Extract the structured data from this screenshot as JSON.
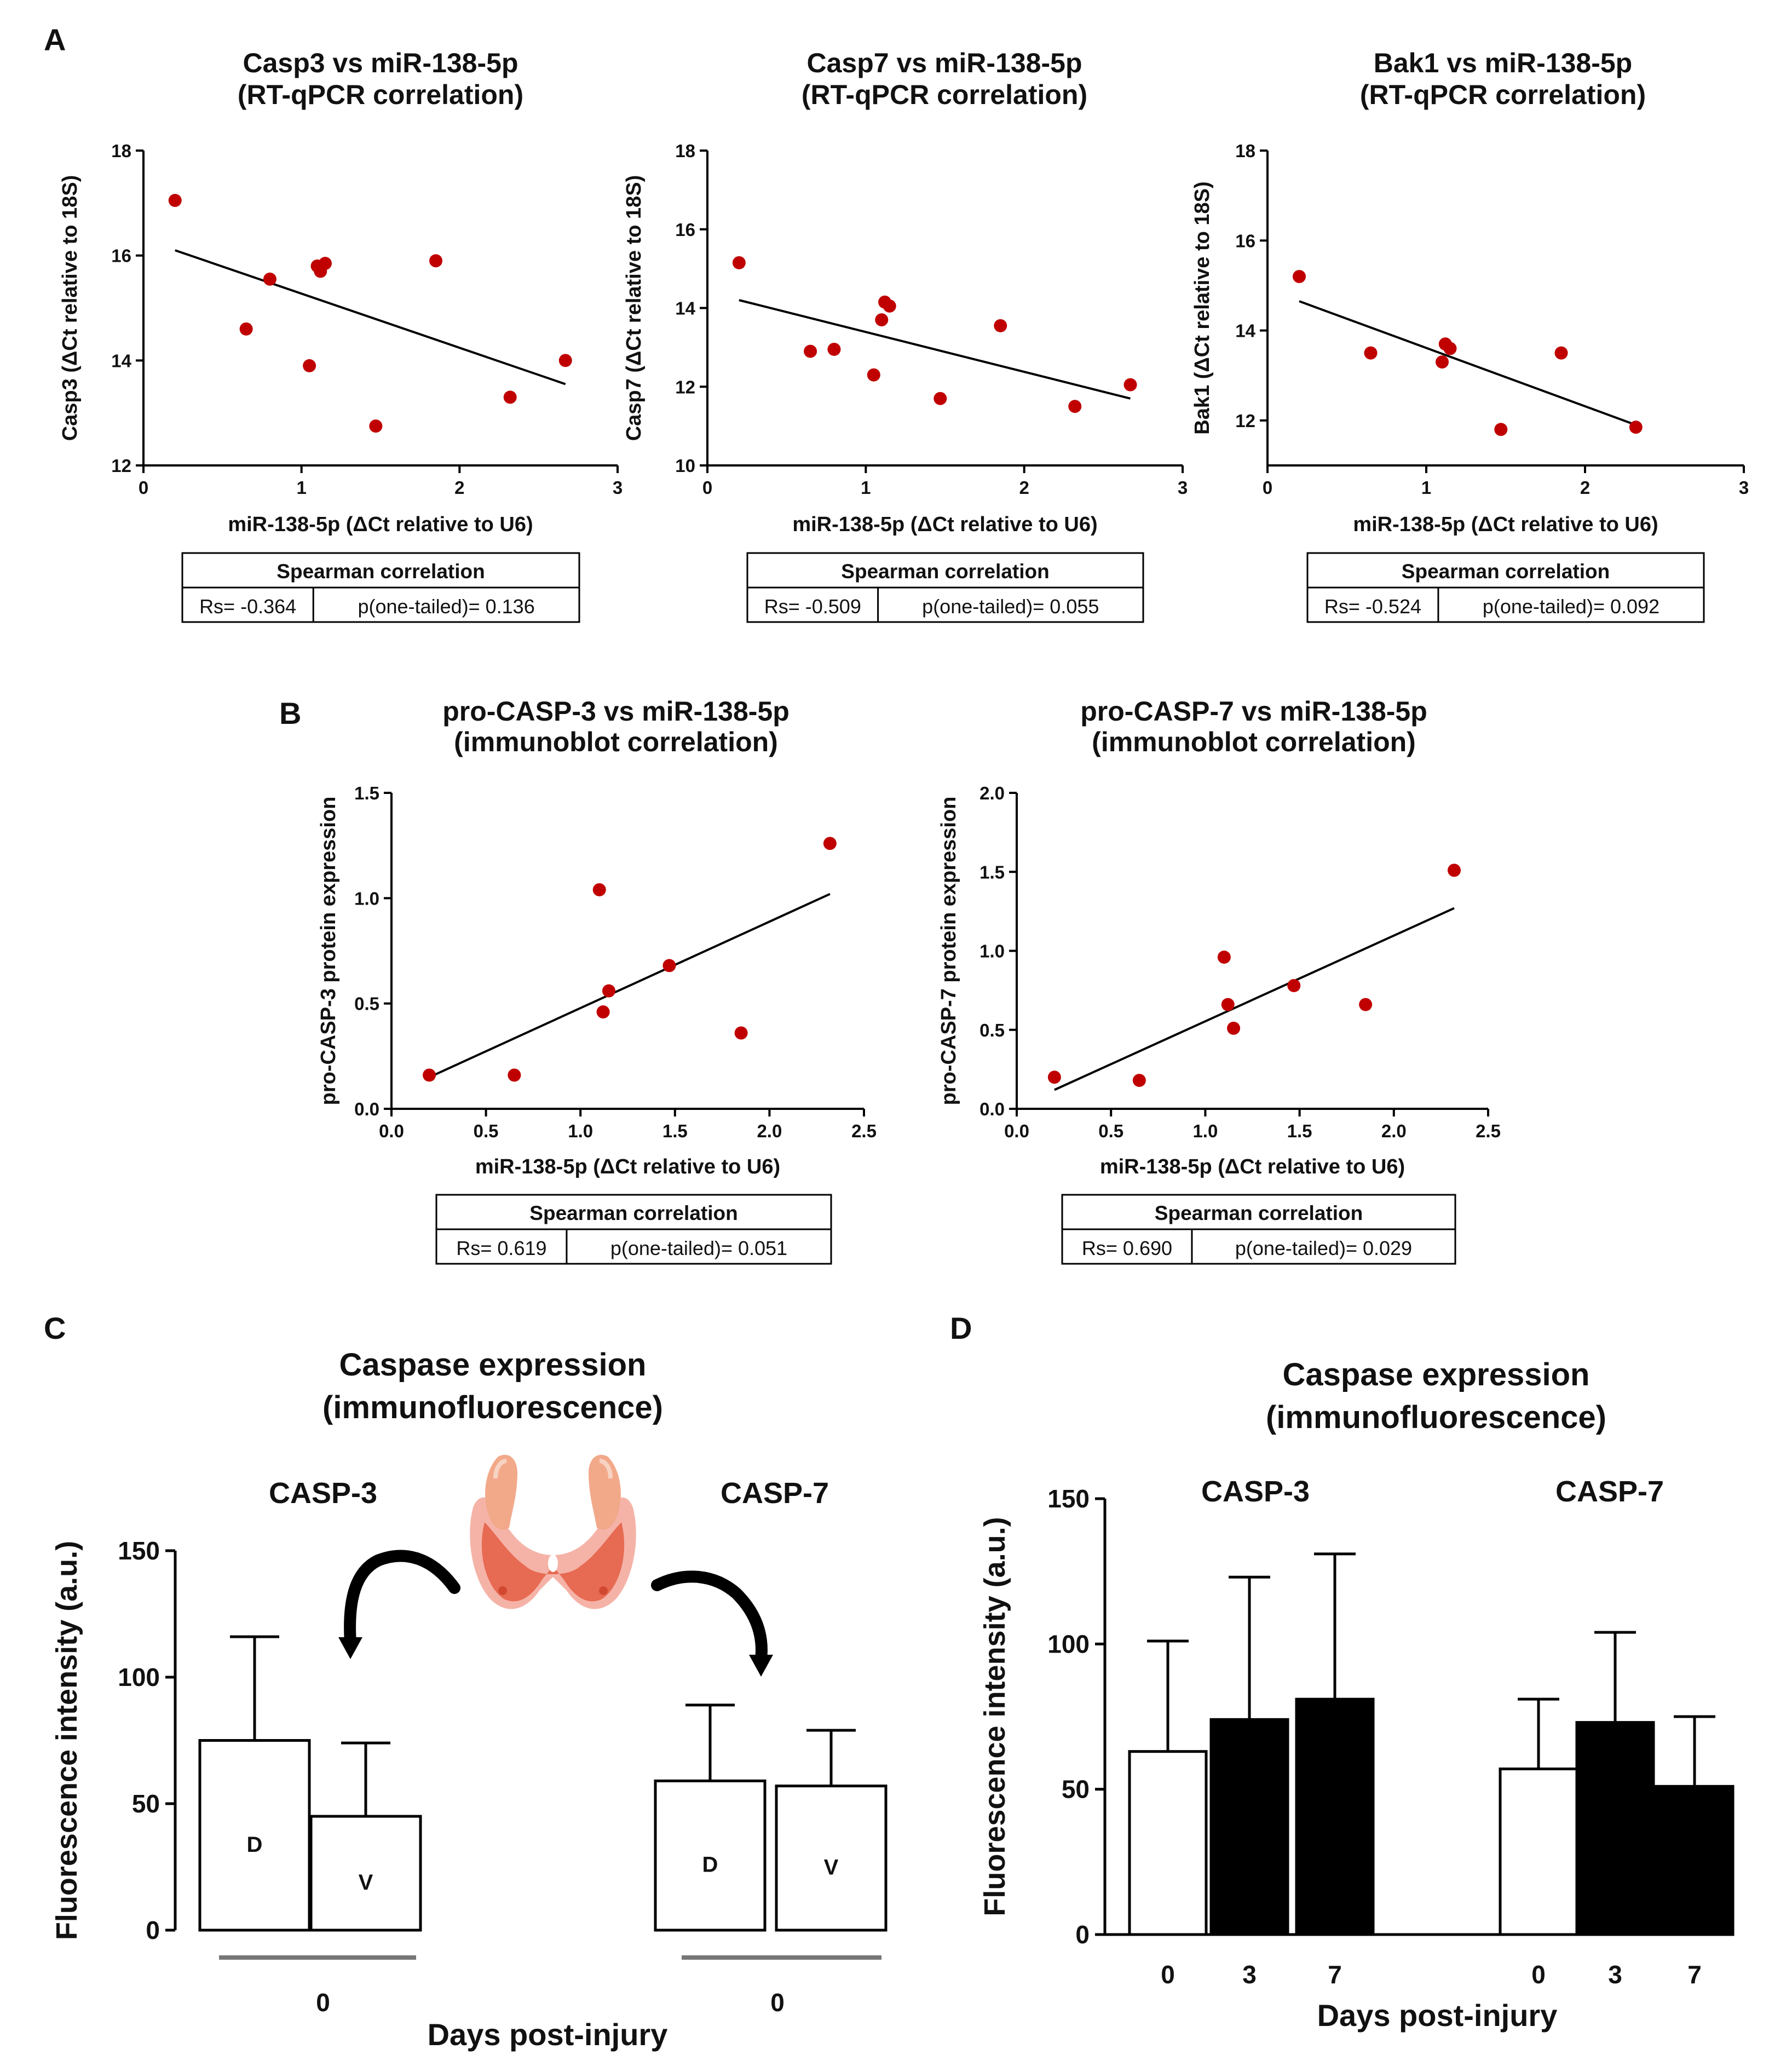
{
  "panel_letters": {
    "A": "A",
    "B": "B",
    "C": "C",
    "D": "D"
  },
  "chart_data": [
    {
      "id": "A1",
      "type": "scatter",
      "title_line1": "Casp3 vs miR-138-5p",
      "title_line2": "(RT-qPCR correlation)",
      "xlabel": "miR-138-5p (ΔCt relative to U6)",
      "ylabel": "Casp3 (ΔCt relative to 18S)",
      "xlim": [
        0,
        3
      ],
      "ylim": [
        12,
        18
      ],
      "xticks": [
        0,
        1,
        2,
        3
      ],
      "xtick_labels": [
        "0",
        "1",
        "2",
        "3"
      ],
      "yticks": [
        12,
        14,
        16,
        18
      ],
      "ytick_labels": [
        "12",
        "14",
        "16",
        "18"
      ],
      "points": [
        [
          0.2,
          17.05
        ],
        [
          0.65,
          14.6
        ],
        [
          0.8,
          15.55
        ],
        [
          1.05,
          13.9
        ],
        [
          1.1,
          15.8
        ],
        [
          1.12,
          15.7
        ],
        [
          1.15,
          15.85
        ],
        [
          1.47,
          12.75
        ],
        [
          1.85,
          15.9
        ],
        [
          2.32,
          13.3
        ],
        [
          2.67,
          14.0
        ]
      ],
      "fit": [
        [
          0.2,
          16.1
        ],
        [
          2.67,
          13.55
        ]
      ],
      "stats": {
        "header": "Spearman correlation",
        "rs": "Rs= -0.364",
        "p": "p(one-tailed)= 0.136"
      },
      "point_color": "#c00000"
    },
    {
      "id": "A2",
      "type": "scatter",
      "title_line1": "Casp7 vs miR-138-5p",
      "title_line2": "(RT-qPCR correlation)",
      "xlabel": "miR-138-5p (ΔCt relative to U6)",
      "ylabel": "Casp7 (ΔCt relative to 18S)",
      "xlim": [
        0,
        3
      ],
      "ylim": [
        10,
        18
      ],
      "xticks": [
        0,
        1,
        2,
        3
      ],
      "xtick_labels": [
        "0",
        "1",
        "2",
        "3"
      ],
      "yticks": [
        10,
        12,
        14,
        16,
        18
      ],
      "ytick_labels": [
        "10",
        "12",
        "14",
        "16",
        "18"
      ],
      "points": [
        [
          0.2,
          15.15
        ],
        [
          0.65,
          12.9
        ],
        [
          0.8,
          12.95
        ],
        [
          1.05,
          12.3
        ],
        [
          1.1,
          13.7
        ],
        [
          1.12,
          14.15
        ],
        [
          1.15,
          14.05
        ],
        [
          1.47,
          11.7
        ],
        [
          1.85,
          13.55
        ],
        [
          2.32,
          11.5
        ],
        [
          2.67,
          12.05
        ]
      ],
      "fit": [
        [
          0.2,
          14.2
        ],
        [
          2.67,
          11.7
        ]
      ],
      "stats": {
        "header": "Spearman correlation",
        "rs": "Rs= -0.509",
        "p": "p(one-tailed)= 0.055"
      },
      "point_color": "#c00000"
    },
    {
      "id": "A3",
      "type": "scatter",
      "title_line1": "Bak1 vs miR-138-5p",
      "title_line2": "(RT-qPCR correlation)",
      "xlabel": "miR-138-5p (ΔCt relative to U6)",
      "ylabel": "Bak1 (ΔCt relative to 18S)",
      "xlim": [
        0,
        3
      ],
      "ylim": [
        11,
        18
      ],
      "xticks": [
        0,
        1,
        2,
        3
      ],
      "xtick_labels": [
        "0",
        "1",
        "2",
        "3"
      ],
      "yticks": [
        12,
        14,
        16,
        18
      ],
      "ytick_labels": [
        "12",
        "14",
        "16",
        "18"
      ],
      "points": [
        [
          0.2,
          15.2
        ],
        [
          0.65,
          13.5
        ],
        [
          1.1,
          13.3
        ],
        [
          1.12,
          13.7
        ],
        [
          1.15,
          13.6
        ],
        [
          1.47,
          11.8
        ],
        [
          1.85,
          13.5
        ],
        [
          2.32,
          11.85
        ]
      ],
      "fit": [
        [
          0.2,
          14.65
        ],
        [
          2.32,
          11.9
        ]
      ],
      "stats": {
        "header": "Spearman correlation",
        "rs": "Rs= -0.524",
        "p": "p(one-tailed)= 0.092"
      },
      "point_color": "#c00000"
    },
    {
      "id": "B1",
      "type": "scatter",
      "title_line1": "pro-CASP-3 vs miR-138-5p",
      "title_line2": "(immunoblot correlation)",
      "xlabel": "miR-138-5p (ΔCt relative to U6)",
      "ylabel": "pro-CASP-3 protein expression",
      "xlim": [
        0,
        2.5
      ],
      "ylim": [
        0,
        1.5
      ],
      "xticks": [
        0,
        0.5,
        1,
        1.5,
        2,
        2.5
      ],
      "xtick_labels": [
        "0.0",
        "0.5",
        "1.0",
        "1.5",
        "2.0",
        "2.5"
      ],
      "yticks": [
        0,
        0.5,
        1,
        1.5
      ],
      "ytick_labels": [
        "0.0",
        "0.5",
        "1.0",
        "1.5"
      ],
      "points": [
        [
          0.2,
          0.16
        ],
        [
          0.65,
          0.16
        ],
        [
          1.1,
          1.04
        ],
        [
          1.12,
          0.46
        ],
        [
          1.15,
          0.56
        ],
        [
          1.47,
          0.68
        ],
        [
          1.85,
          0.36
        ],
        [
          2.32,
          1.26
        ]
      ],
      "fit": [
        [
          0.2,
          0.15
        ],
        [
          2.32,
          1.02
        ]
      ],
      "stats": {
        "header": "Spearman correlation",
        "rs": "Rs= 0.619",
        "p": "p(one-tailed)= 0.051"
      },
      "point_color": "#c00000"
    },
    {
      "id": "B2",
      "type": "scatter",
      "title_line1": "pro-CASP-7 vs miR-138-5p",
      "title_line2": "(immunoblot correlation)",
      "xlabel": "miR-138-5p (ΔCt relative to U6)",
      "ylabel": "pro-CASP-7 protein expression",
      "xlim": [
        0,
        2.5
      ],
      "ylim": [
        0,
        2.0
      ],
      "xticks": [
        0,
        0.5,
        1,
        1.5,
        2,
        2.5
      ],
      "xtick_labels": [
        "0.0",
        "0.5",
        "1.0",
        "1.5",
        "2.0",
        "2.5"
      ],
      "yticks": [
        0,
        0.5,
        1,
        1.5,
        2
      ],
      "ytick_labels": [
        "0.0",
        "0.5",
        "1.0",
        "1.5",
        "2.0"
      ],
      "points": [
        [
          0.2,
          0.2
        ],
        [
          0.65,
          0.18
        ],
        [
          1.1,
          0.96
        ],
        [
          1.12,
          0.66
        ],
        [
          1.15,
          0.51
        ],
        [
          1.47,
          0.78
        ],
        [
          1.85,
          0.66
        ],
        [
          2.32,
          1.51
        ]
      ],
      "fit": [
        [
          0.2,
          0.12
        ],
        [
          2.32,
          1.27
        ]
      ],
      "stats": {
        "header": "Spearman correlation",
        "rs": "Rs= 0.690",
        "p": "p(one-tailed)= 0.029"
      },
      "point_color": "#c00000"
    },
    {
      "id": "C",
      "type": "bar",
      "title_line1": "Caspase expression",
      "title_line2": "(immunofluorescence)",
      "ylabel": "Fluorescence intensity (a.u.)",
      "xlabel": "Days post-injury",
      "ylim": [
        0,
        150
      ],
      "yticks": [
        0,
        50,
        100,
        150
      ],
      "ytick_labels": [
        "0",
        "50",
        "100",
        "150"
      ],
      "groups": [
        {
          "name": "CASP-3",
          "day_label": "0",
          "bars": [
            {
              "label": "D",
              "value": 75,
              "error": 41,
              "fill": "#ffffff"
            },
            {
              "label": "V",
              "value": 45,
              "error": 29,
              "fill": "#ffffff"
            }
          ]
        },
        {
          "name": "CASP-7",
          "day_label": "0",
          "bars": [
            {
              "label": "D",
              "value": 59,
              "error": 30,
              "fill": "#ffffff"
            },
            {
              "label": "V",
              "value": 57,
              "error": 22,
              "fill": "#ffffff"
            }
          ]
        }
      ]
    },
    {
      "id": "D",
      "type": "bar",
      "title_line1": "Caspase expression",
      "title_line2": "(immunofluorescence)",
      "ylabel": "Fluorescence intensity (a.u.)",
      "xlabel": "Days post-injury",
      "ylim": [
        0,
        150
      ],
      "yticks": [
        0,
        50,
        100,
        150
      ],
      "ytick_labels": [
        "0",
        "50",
        "100",
        "150"
      ],
      "groups": [
        {
          "name": "CASP-3",
          "bars": [
            {
              "label": "0",
              "value": 63,
              "error": 38,
              "fill": "#ffffff"
            },
            {
              "label": "3",
              "value": 74,
              "error": 49,
              "fill": "#000000"
            },
            {
              "label": "7",
              "value": 81,
              "error": 50,
              "fill": "#000000"
            }
          ]
        },
        {
          "name": "CASP-7",
          "bars": [
            {
              "label": "0",
              "value": 57,
              "error": 24,
              "fill": "#ffffff"
            },
            {
              "label": "3",
              "value": 73,
              "error": 31,
              "fill": "#000000"
            },
            {
              "label": "7",
              "value": 51,
              "error": 24,
              "fill": "#000000"
            }
          ]
        }
      ]
    }
  ]
}
